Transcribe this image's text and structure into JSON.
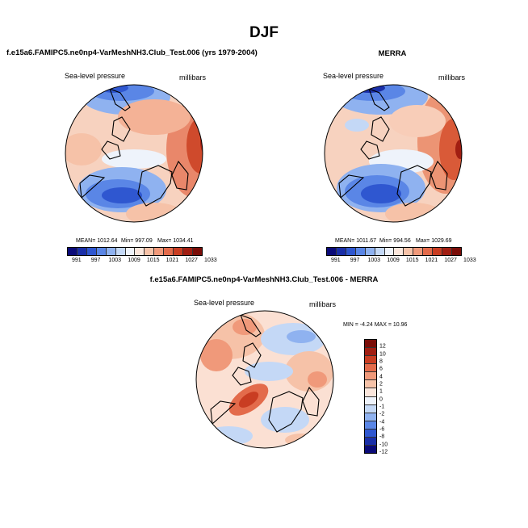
{
  "main_title": "DJF",
  "left_panel": {
    "title": "f.e15a6.FAMIPC5.ne0np4-VarMeshNH3.Club_Test.006 (yrs 1979-2004)",
    "var_label": "Sea-level pressure",
    "units": "millibars",
    "mean_label": "MEAN= 1012.64",
    "min_label": "Min= 997.09",
    "max_label": "Max= 1034.41"
  },
  "right_panel": {
    "title": "MERRA",
    "var_label": "Sea-level pressure",
    "units": "millibars",
    "mean_label": "MEAN= 1011.67",
    "min_label": "Min= 994.56",
    "max_label": "Max= 1029.69"
  },
  "diff_panel": {
    "title": "f.e15a6.FAMIPC5.ne0np4-VarMeshNH3.Club_Test.006 - MERRA",
    "var_label": "Sea-level pressure",
    "units": "millibars",
    "minmax_label": "MIN = -4.24 MAX = 10.96"
  },
  "chart_data": [
    {
      "type": "heatmap",
      "name": "model_slp",
      "title": "Sea-level pressure",
      "units": "millibars",
      "mean": 1012.64,
      "min": 997.09,
      "max": 1034.41,
      "colorbar_ticks": [
        "991",
        "997",
        "1003",
        "1009",
        "1015",
        "1021",
        "1027",
        "1033"
      ]
    },
    {
      "type": "heatmap",
      "name": "merra_slp",
      "title": "Sea-level pressure",
      "units": "millibars",
      "mean": 1011.67,
      "min": 994.56,
      "max": 1029.69,
      "colorbar_ticks": [
        "991",
        "997",
        "1003",
        "1009",
        "1015",
        "1021",
        "1027",
        "1033"
      ]
    },
    {
      "type": "heatmap",
      "name": "difference_slp",
      "title": "Sea-level pressure",
      "units": "millibars",
      "min": -4.24,
      "max": 10.96,
      "colorbar_ticks": [
        "12",
        "10",
        "8",
        "6",
        "4",
        "2",
        "1",
        "0",
        "-1",
        "-2",
        "-4",
        "-6",
        "-8",
        "-10",
        "-12"
      ]
    }
  ],
  "colors": {
    "abs_palette": [
      "#0a0a78",
      "#1a2fa8",
      "#2f57d0",
      "#5a86e6",
      "#8fb2f0",
      "#c4d8f6",
      "#eef3fb",
      "#fbe6dc",
      "#f6c2a8",
      "#f0997a",
      "#e36b4b",
      "#c93d22",
      "#a11e12",
      "#7a0d08"
    ],
    "diff_palette": [
      "#7a0d08",
      "#a11e12",
      "#c93d22",
      "#e36b4b",
      "#f0997a",
      "#f6c2a8",
      "#fbe6dc",
      "#eef3fb",
      "#c4d8f6",
      "#8fb2f0",
      "#5a86e6",
      "#2f57d0",
      "#1a2fa8",
      "#0a0a78"
    ]
  }
}
